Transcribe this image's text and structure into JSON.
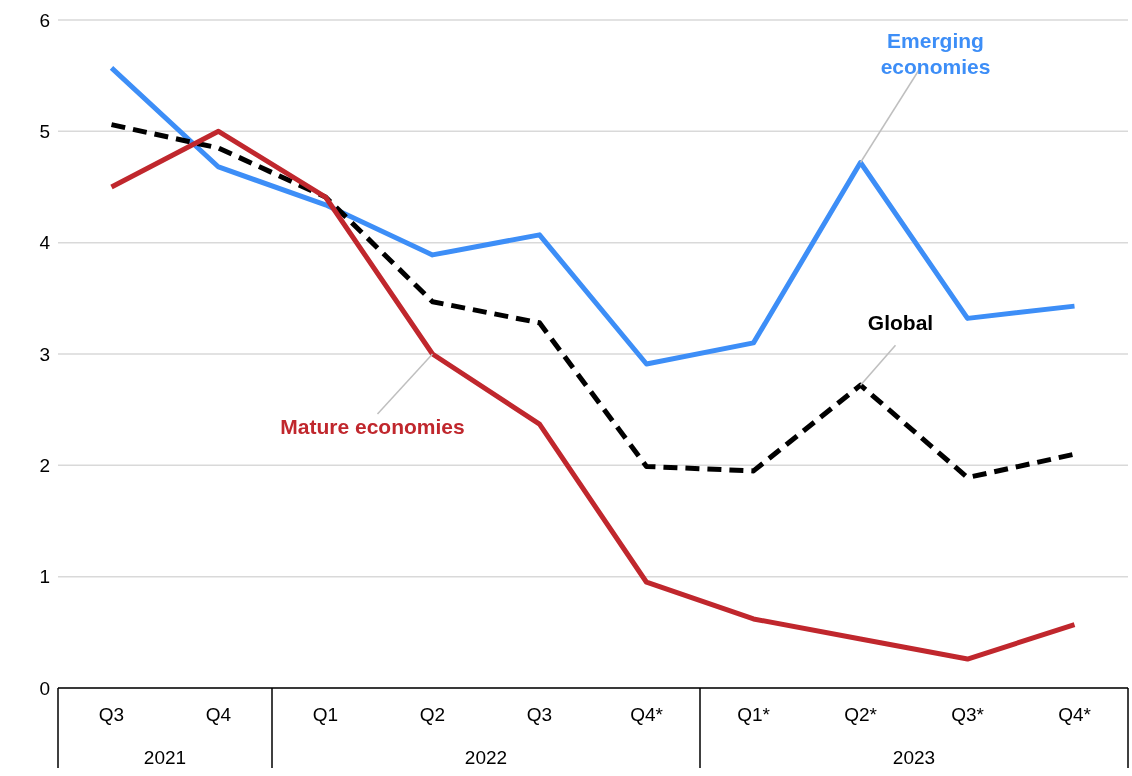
{
  "chart_data": {
    "type": "line",
    "categories": [
      "Q3",
      "Q4",
      "Q1",
      "Q2",
      "Q3",
      "Q4*",
      "Q1*",
      "Q2*",
      "Q3*",
      "Q4*"
    ],
    "annotations": [
      "2021",
      "2022",
      "2023"
    ],
    "series": [
      {
        "name": "Emerging economies",
        "color": "#3d8ef7",
        "values": [
          5.57,
          4.68,
          4.34,
          3.89,
          4.07,
          2.91,
          3.1,
          4.72,
          3.32,
          3.43
        ]
      },
      {
        "name": "Global",
        "color": "#000000",
        "line_style": "dashed",
        "values": [
          5.06,
          4.85,
          4.41,
          3.47,
          3.28,
          1.99,
          1.95,
          2.72,
          1.89,
          2.1
        ]
      },
      {
        "name": "Mature economies",
        "color": "#c0272d",
        "values": [
          4.5,
          5.0,
          4.41,
          3.0,
          2.37,
          0.95,
          0.62,
          0.44,
          0.26,
          0.57
        ]
      }
    ],
    "ylim": [
      0,
      6
    ],
    "yticks": [
      0,
      1,
      2,
      3,
      4,
      5,
      6
    ],
    "grid": "y",
    "line_style": "solid",
    "marker": "none"
  }
}
